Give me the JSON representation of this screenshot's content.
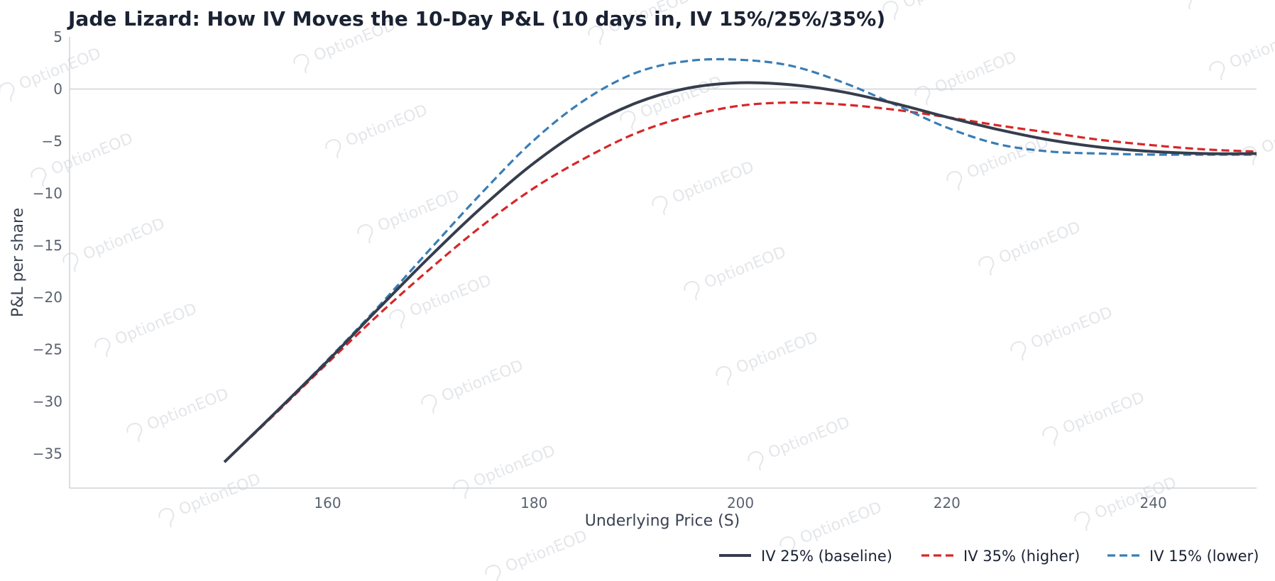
{
  "watermark": "OptionEOD",
  "chart_data": {
    "type": "line",
    "title": "Jade Lizard: How IV Moves the 10-Day P&L (10 days in, IV 15%/25%/35%)",
    "xlabel": "Underlying Price (S)",
    "ylabel": "P&L per share",
    "xlim": [
      135,
      250
    ],
    "ylim": [
      -38.3,
      5
    ],
    "x_ticks": [
      160,
      180,
      200,
      220,
      240
    ],
    "y_ticks": [
      5,
      0,
      -5,
      -10,
      -15,
      -20,
      -25,
      -30,
      -35
    ],
    "y_tick_labels": [
      "5",
      "0",
      "−5",
      "−10",
      "−15",
      "−20",
      "−25",
      "−30",
      "−35"
    ],
    "grid": false,
    "zero_line": true,
    "legend_position": "bottom-right",
    "x": [
      150,
      155,
      160,
      165,
      170,
      175,
      180,
      185,
      190,
      195,
      200,
      205,
      210,
      215,
      220,
      225,
      230,
      235,
      240,
      245,
      250
    ],
    "series": [
      {
        "name": "IV 25% (baseline)",
        "color": "#363d4d",
        "style": "solid",
        "values": [
          -35.8,
          -31.0,
          -26.1,
          -21.0,
          -16.0,
          -11.3,
          -7.1,
          -3.7,
          -1.3,
          0.1,
          0.6,
          0.4,
          -0.3,
          -1.4,
          -2.7,
          -3.9,
          -4.9,
          -5.6,
          -6.0,
          -6.2,
          -6.2
        ]
      },
      {
        "name": "IV 35% (higher)",
        "color": "#d62728",
        "style": "dashed",
        "values": [
          -35.8,
          -31.1,
          -26.3,
          -21.6,
          -17.2,
          -13.1,
          -9.5,
          -6.6,
          -4.2,
          -2.6,
          -1.6,
          -1.3,
          -1.5,
          -2.0,
          -2.7,
          -3.5,
          -4.2,
          -4.9,
          -5.4,
          -5.8,
          -6.0
        ]
      },
      {
        "name": "IV 15% (lower)",
        "color": "#3a7db5",
        "style": "dashed",
        "values": [
          -35.8,
          -31.0,
          -26.0,
          -20.8,
          -15.3,
          -9.9,
          -4.9,
          -1.0,
          1.6,
          2.7,
          2.8,
          2.2,
          0.6,
          -1.5,
          -3.7,
          -5.3,
          -6.0,
          -6.2,
          -6.3,
          -6.3,
          -6.3
        ]
      }
    ]
  }
}
